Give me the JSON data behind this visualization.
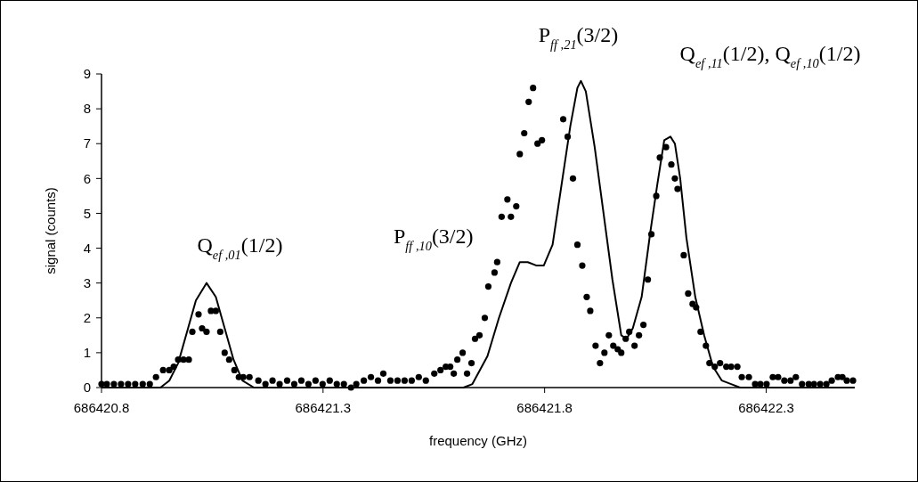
{
  "chart_data": {
    "type": "scatter",
    "xlabel": "frequency (GHz)",
    "ylabel": "signal (counts)",
    "xlim": [
      686420.8,
      686422.5
    ],
    "ylim": [
      0,
      9
    ],
    "xticks": [
      686420.8,
      686421.3,
      686421.8,
      686422.3
    ],
    "yticks": [
      0,
      1,
      2,
      3,
      4,
      5,
      6,
      7,
      8,
      9
    ],
    "grid": false,
    "series": [
      {
        "marker": "circle",
        "color": "#000000",
        "x": [
          686420.8,
          686420.812,
          686420.828,
          686420.844,
          686420.86,
          686420.876,
          686420.893,
          686420.909,
          686420.923,
          686420.939,
          686420.953,
          686420.963,
          686420.973,
          686420.985,
          686420.997,
          686421.005,
          686421.019,
          686421.027,
          686421.037,
          686421.047,
          686421.058,
          686421.068,
          686421.078,
          686421.088,
          686421.1,
          686421.11,
          686421.12,
          686421.134,
          686421.154,
          686421.17,
          686421.186,
          686421.202,
          686421.219,
          686421.235,
          686421.251,
          686421.267,
          686421.283,
          686421.299,
          686421.315,
          686421.331,
          686421.347,
          686421.363,
          686421.375,
          686421.392,
          686421.408,
          686421.424,
          686421.436,
          686421.452,
          686421.468,
          686421.484,
          686421.5,
          686421.516,
          686421.532,
          686421.551,
          686421.565,
          686421.577,
          686421.587,
          686421.595,
          686421.603,
          686421.615,
          686421.625,
          686421.635,
          686421.643,
          686421.653,
          686421.665,
          686421.673,
          686421.687,
          686421.693,
          686421.703,
          686421.716,
          686421.724,
          686421.736,
          686421.744,
          686421.754,
          686421.764,
          686421.774,
          686421.784,
          686421.794,
          686421.842,
          686421.852,
          686421.864,
          686421.874,
          686421.885,
          686421.895,
          686421.903,
          686421.915,
          686421.925,
          686421.935,
          686421.945,
          686421.955,
          686421.965,
          686421.973,
          686421.983,
          686421.991,
          686422.003,
          686422.013,
          686422.023,
          686422.033,
          686422.041,
          686422.052,
          686422.06,
          686422.074,
          686422.086,
          686422.094,
          686422.1,
          686422.114,
          686422.124,
          686422.134,
          686422.142,
          686422.152,
          686422.164,
          686422.172,
          686422.184,
          686422.196,
          686422.21,
          686422.221,
          686422.235,
          686422.245,
          686422.261,
          686422.275,
          686422.287,
          686422.301,
          686422.315,
          686422.327,
          686422.341,
          686422.355,
          686422.367,
          686422.381,
          686422.396,
          686422.408,
          686422.422,
          686422.436,
          686422.448,
          686422.462,
          686422.472,
          686422.482,
          686422.496
        ],
        "values": [
          0.1,
          0.1,
          0.1,
          0.1,
          0.1,
          0.1,
          0.1,
          0.1,
          0.3,
          0.5,
          0.5,
          0.6,
          0.8,
          0.8,
          0.8,
          1.6,
          2.1,
          1.7,
          1.6,
          2.2,
          2.2,
          1.6,
          1.0,
          0.8,
          0.5,
          0.3,
          0.3,
          0.3,
          0.2,
          0.1,
          0.2,
          0.1,
          0.2,
          0.1,
          0.2,
          0.1,
          0.2,
          0.1,
          0.2,
          0.1,
          0.1,
          0.0,
          0.1,
          0.2,
          0.3,
          0.2,
          0.4,
          0.2,
          0.2,
          0.2,
          0.2,
          0.3,
          0.2,
          0.4,
          0.5,
          0.6,
          0.6,
          0.4,
          0.8,
          1.0,
          0.4,
          0.7,
          1.4,
          1.5,
          2.0,
          2.9,
          3.3,
          3.6,
          4.9,
          5.4,
          4.9,
          5.2,
          6.7,
          7.3,
          8.2,
          8.6,
          7.0,
          7.1,
          7.7,
          7.2,
          6.0,
          4.1,
          3.5,
          2.6,
          2.2,
          1.2,
          0.7,
          1.0,
          1.5,
          1.2,
          1.1,
          1.0,
          1.4,
          1.6,
          1.2,
          1.5,
          1.8,
          3.1,
          4.4,
          5.5,
          6.6,
          6.9,
          6.4,
          6.0,
          5.7,
          3.8,
          2.7,
          2.4,
          2.3,
          1.6,
          1.2,
          0.7,
          0.6,
          0.7,
          0.6,
          0.6,
          0.6,
          0.3,
          0.3,
          0.1,
          0.1,
          0.1,
          0.3,
          0.3,
          0.2,
          0.2,
          0.3,
          0.1,
          0.1,
          0.1,
          0.1,
          0.1,
          0.2,
          0.3,
          0.3,
          0.2,
          0.2
        ]
      },
      {
        "type": "line",
        "color": "#000000",
        "x": [
          686420.8,
          686420.933,
          686420.953,
          686420.973,
          686420.993,
          686421.013,
          686421.037,
          686421.058,
          686421.078,
          686421.098,
          686421.118,
          686421.144,
          686421.617,
          686421.637,
          686421.671,
          686421.697,
          686421.724,
          686421.744,
          686421.762,
          686421.782,
          686421.798,
          686421.818,
          686421.838,
          686421.858,
          686421.874,
          686421.882,
          686421.893,
          686421.913,
          686421.933,
          686421.953,
          686421.973,
          686421.985,
          686421.999,
          686422.019,
          686422.039,
          686422.054,
          686422.07,
          686422.084,
          686422.094,
          686422.106,
          686422.12,
          686422.14,
          686422.16,
          686422.18,
          686422.2,
          686422.221,
          686422.241,
          686422.5
        ],
        "values": [
          0,
          0,
          0.2,
          0.7,
          1.6,
          2.5,
          3.0,
          2.6,
          1.7,
          0.8,
          0.2,
          0,
          0,
          0.1,
          0.9,
          2.0,
          3.0,
          3.6,
          3.6,
          3.5,
          3.5,
          4.1,
          5.8,
          7.5,
          8.6,
          8.8,
          8.5,
          6.9,
          5.0,
          3.1,
          1.5,
          1.4,
          1.7,
          2.6,
          4.5,
          5.8,
          7.1,
          7.2,
          7.0,
          6.0,
          4.3,
          2.6,
          1.5,
          0.6,
          0.2,
          0.1,
          0,
          0
        ]
      }
    ],
    "annotations": [
      {
        "text": "Q$_{ef ,01}$(1/2)",
        "x": 686421.04,
        "y": 3.0
      },
      {
        "text": "P$_{ff ,21}$(3/2)",
        "x": 686421.88,
        "y": 8.8
      },
      {
        "text": "P$_{ff ,10}$(3/2)",
        "x": 686421.76,
        "y": 3.6
      },
      "Q$_{ef ,11}$(1/2), Q$_{ef ,10}$(1/2)"
    ]
  }
}
